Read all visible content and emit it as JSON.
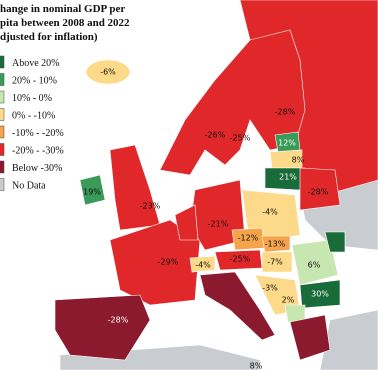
{
  "title": [
    "hange in nominal GDP per",
    "pita between 2008 and 2022",
    "djusted for inflation)"
  ],
  "legend": [
    "Above 20%",
    "20% - 10%",
    "10% - 0%",
    "0% - -10%",
    "-10% - -20%",
    "-20% - -30%",
    "Below -30%",
    "No Data"
  ],
  "labels": [
    "-6%",
    "-28%",
    "-26%",
    "-25%",
    "12%",
    "8%",
    "21%",
    "-28%",
    "19%",
    "-23%",
    "-21%",
    "-4%",
    "-12%",
    "-13%",
    "-29%",
    "-25%",
    "-7%",
    "6%",
    "-4%",
    "-3%",
    "2%",
    "30%",
    "-28%",
    "8%"
  ]
}
